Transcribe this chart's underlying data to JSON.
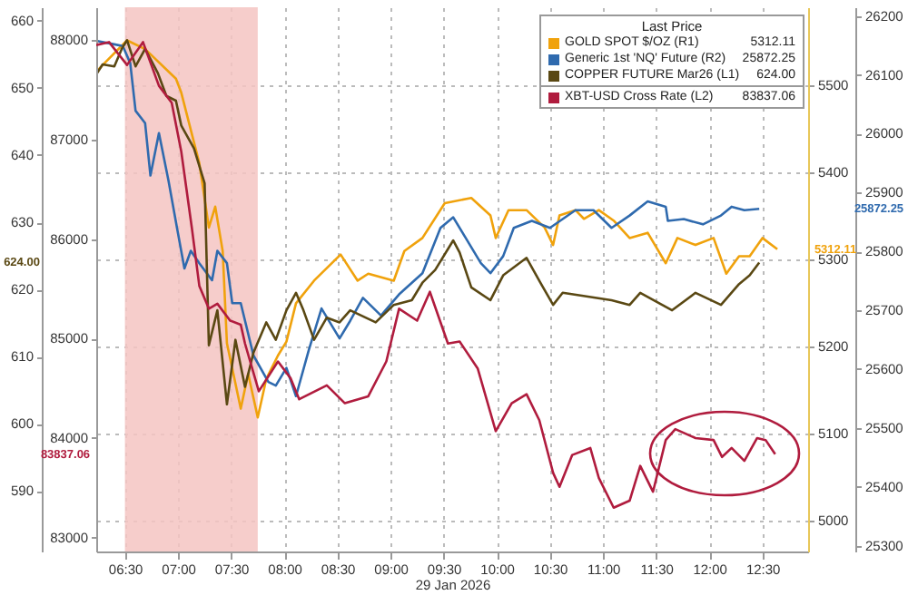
{
  "chart_data": [
    {
      "type": "line",
      "xlabel": "29 Jan 2026",
      "legend_title": "Last Price",
      "legend": "top right",
      "grid": true,
      "xlim": [
        6.23,
        12.93
      ],
      "xticks": [
        {
          "value": 6.5,
          "label": "06:30"
        },
        {
          "value": 7,
          "label": "07:00"
        },
        {
          "value": 7.5,
          "label": "07:30"
        },
        {
          "value": 8,
          "label": "08:00"
        },
        {
          "value": 8.5,
          "label": "08:30"
        },
        {
          "value": 9,
          "label": "09:00"
        },
        {
          "value": 9.5,
          "label": "09:30"
        },
        {
          "value": 10,
          "label": "10:00"
        },
        {
          "value": 10.5,
          "label": "10:30"
        },
        {
          "value": 11,
          "label": "11:00"
        },
        {
          "value": 11.5,
          "label": "11:30"
        },
        {
          "value": 12,
          "label": "12:00"
        },
        {
          "value": 12.5,
          "label": "12:30"
        }
      ],
      "ylim": [
        4965,
        5590
      ],
      "yticks": [
        5000,
        5100,
        5200,
        5300,
        5400,
        5500
      ],
      "y2lim": [
        25290,
        26215
      ],
      "y2ticks": [
        25300,
        25400,
        25500,
        25600,
        25700,
        25800,
        25900,
        26000,
        26100,
        26200
      ],
      "y3lim": [
        581,
        662
      ],
      "y3ticks": [
        590,
        600,
        610,
        620,
        630,
        640,
        650,
        660
      ],
      "bands": [
        {
          "axis": "x",
          "from": 6.5,
          "to": 7.75,
          "color": "#f5c4c2"
        }
      ],
      "series": [
        {
          "name": "GOLD SPOT $/OZ (R1)",
          "color": "#f0a20c",
          "axis": "y",
          "x": [
            6.23,
            6.31,
            6.52,
            6.69,
            6.98,
            7.03,
            7.2,
            7.29,
            7.35,
            7.42,
            7.46,
            7.59,
            7.66,
            7.75,
            7.83,
            7.94,
            8.02,
            8.11,
            8.28,
            8.53,
            8.69,
            8.79,
            9.03,
            9.13,
            9.3,
            9.51,
            9.76,
            9.94,
            9.99,
            10.11,
            10.28,
            10.45,
            10.53,
            10.59,
            10.74,
            10.82,
            10.96,
            11.1,
            11.25,
            11.42,
            11.59,
            11.7,
            11.87,
            12.04,
            12.16,
            12.28,
            12.38,
            12.5,
            12.64
          ],
          "values": [
            5516,
            5526,
            5552,
            5542,
            5508,
            5492,
            5411,
            5337,
            5361,
            5310,
            5204,
            5129,
            5169,
            5119,
            5163,
            5190,
            5206,
            5250,
            5276,
            5306,
            5276,
            5284,
            5276,
            5310,
            5325,
            5365,
            5371,
            5351,
            5325,
            5357,
            5357,
            5337,
            5317,
            5351,
            5357,
            5347,
            5357,
            5345,
            5325,
            5331,
            5296,
            5325,
            5317,
            5325,
            5284,
            5304,
            5304,
            5325,
            5312.11
          ]
        },
        {
          "name": "Generic 1st 'NQ' Future (R2)",
          "color": "#2f6aae",
          "axis": "y2",
          "x": [
            6.23,
            6.4,
            6.48,
            6.55,
            6.6,
            6.69,
            6.74,
            6.82,
            6.91,
            6.99,
            7.06,
            7.12,
            7.2,
            7.32,
            7.37,
            7.46,
            7.51,
            7.59,
            7.71,
            7.85,
            7.92,
            8.02,
            8.11,
            8.23,
            8.35,
            8.52,
            8.62,
            8.74,
            8.91,
            9.08,
            9.3,
            9.47,
            9.59,
            9.71,
            9.85,
            9.94,
            10.06,
            10.16,
            10.33,
            10.5,
            10.74,
            10.91,
            11.08,
            11.25,
            11.42,
            11.59,
            11.61,
            11.76,
            11.94,
            12.11,
            12.21,
            12.33,
            12.47
          ],
          "values": [
            26158,
            26152,
            26149,
            26120,
            26039,
            26018,
            25929,
            26001,
            25920,
            25840,
            25771,
            25801,
            25780,
            25751,
            25801,
            25780,
            25712,
            25712,
            25623,
            25578,
            25572,
            25602,
            25554,
            25632,
            25703,
            25652,
            25682,
            25721,
            25691,
            25727,
            25763,
            25840,
            25858,
            25822,
            25780,
            25763,
            25792,
            25840,
            25852,
            25840,
            25870,
            25870,
            25840,
            25861,
            25885,
            25876,
            25852,
            25855,
            25846,
            25861,
            25876,
            25870,
            25872.25
          ]
        },
        {
          "name": "COPPER FUTURE Mar26 (L1)",
          "color": "#5a4813",
          "axis": "y3",
          "x": [
            6.23,
            6.29,
            6.4,
            6.47,
            6.52,
            6.6,
            6.69,
            6.81,
            6.89,
            6.98,
            7.03,
            7.15,
            7.25,
            7.29,
            7.37,
            7.46,
            7.54,
            7.63,
            7.71,
            7.83,
            7.92,
            8.02,
            8.11,
            8.18,
            8.28,
            8.4,
            8.52,
            8.62,
            8.86,
            9.03,
            9.2,
            9.3,
            9.42,
            9.59,
            9.65,
            9.76,
            9.94,
            10.06,
            10.28,
            10.41,
            10.53,
            10.62,
            11.08,
            11.25,
            11.35,
            11.65,
            11.87,
            12.11,
            12.28,
            12.38,
            12.47
          ],
          "values": [
            652,
            653.5,
            653.2,
            655.8,
            657.1,
            653.2,
            655.8,
            652.2,
            648.8,
            648.1,
            644.4,
            641,
            635.8,
            611.7,
            616.9,
            602.9,
            612.5,
            605.5,
            610.6,
            615.1,
            612.5,
            616.9,
            619.5,
            616.9,
            612.5,
            615.8,
            615.1,
            616.9,
            615.1,
            617.7,
            618.4,
            621,
            622.9,
            627.3,
            625.5,
            620.3,
            618.4,
            622.1,
            624.7,
            621,
            617.7,
            619.5,
            618.4,
            617.7,
            619.5,
            616.9,
            619.5,
            617.7,
            620.8,
            622.1,
            624
          ]
        }
      ],
      "annotations": [
        "5312.11",
        "25872.25",
        "624.00"
      ]
    },
    {
      "type": "line",
      "legend": "top right",
      "tick_labels": "y",
      "xlim": [
        6.23,
        12.93
      ],
      "ylim": [
        82860,
        88330
      ],
      "yticks": [
        83000,
        84000,
        85000,
        86000,
        87000,
        88000
      ],
      "series": [
        {
          "name": "XBT-USD Cross Rate (L2)",
          "color": "#b01c3e",
          "x": [
            6.23,
            6.35,
            6.52,
            6.67,
            6.82,
            6.94,
            7.03,
            7.13,
            7.2,
            7.29,
            7.37,
            7.49,
            7.59,
            7.63,
            7.76,
            7.94,
            8.06,
            8.14,
            8.4,
            8.57,
            8.79,
            8.96,
            9.08,
            9.25,
            9.37,
            9.54,
            9.65,
            9.82,
            9.99,
            10.14,
            10.28,
            10.4,
            10.53,
            10.59,
            10.71,
            10.88,
            10.96,
            11.1,
            11.25,
            11.35,
            11.47,
            11.59,
            11.68,
            11.87,
            12.04,
            12.12,
            12.21,
            12.33,
            12.45,
            12.53,
            12.62
          ],
          "values": [
            87950,
            87980,
            87750,
            87980,
            87540,
            87370,
            86880,
            86110,
            85530,
            85300,
            85350,
            85180,
            85140,
            84950,
            84470,
            84770,
            84600,
            84390,
            84530,
            84350,
            84420,
            84770,
            85300,
            85180,
            85470,
            84950,
            84970,
            84700,
            84070,
            84350,
            84440,
            84180,
            83650,
            83510,
            83830,
            83900,
            83600,
            83300,
            83370,
            83720,
            83460,
            83980,
            84090,
            84000,
            83980,
            83810,
            83900,
            83770,
            84000,
            83980,
            83837.06
          ]
        }
      ],
      "annotations": [
        "83837.06"
      ]
    }
  ]
}
